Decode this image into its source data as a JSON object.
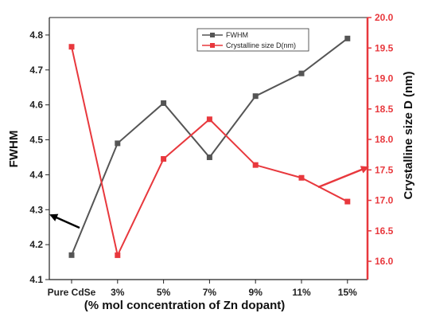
{
  "chart_data": {
    "type": "line",
    "categories": [
      "Pure CdSe",
      "3%",
      "5%",
      "7%",
      "9%",
      "11%",
      "15%"
    ],
    "xlabel": "(% mol concentration of Zn dopant)",
    "y_left": {
      "label": "FWHM",
      "range": [
        4.1,
        4.85
      ],
      "ticks": [
        "4.1",
        "4.2",
        "4.3",
        "4.4",
        "4.5",
        "4.6",
        "4.7",
        "4.8"
      ]
    },
    "y_right": {
      "label": "Crystalline size D (nm)",
      "range": [
        15.7,
        20.0
      ],
      "ticks": [
        "16.0",
        "16.5",
        "17.0",
        "17.5",
        "18.0",
        "18.5",
        "19.0",
        "19.5",
        "20.0"
      ]
    },
    "series": [
      {
        "name": "FWHM",
        "axis": "left",
        "color": "#555555",
        "marker": "square",
        "values": [
          4.17,
          4.49,
          4.605,
          4.45,
          4.625,
          4.69,
          4.79
        ]
      },
      {
        "name": "Crystalline size D(nm)",
        "axis": "right",
        "color": "#e8383d",
        "marker": "square",
        "values": [
          19.52,
          16.1,
          17.68,
          18.33,
          17.58,
          17.37,
          16.98
        ]
      }
    ],
    "legend_position": "top-right",
    "annotations": [
      {
        "type": "arrow",
        "direction": "left",
        "points_to": "left axis",
        "color": "#000000"
      },
      {
        "type": "arrow",
        "direction": "right",
        "points_to": "right axis",
        "color": "#e8383d"
      }
    ]
  }
}
